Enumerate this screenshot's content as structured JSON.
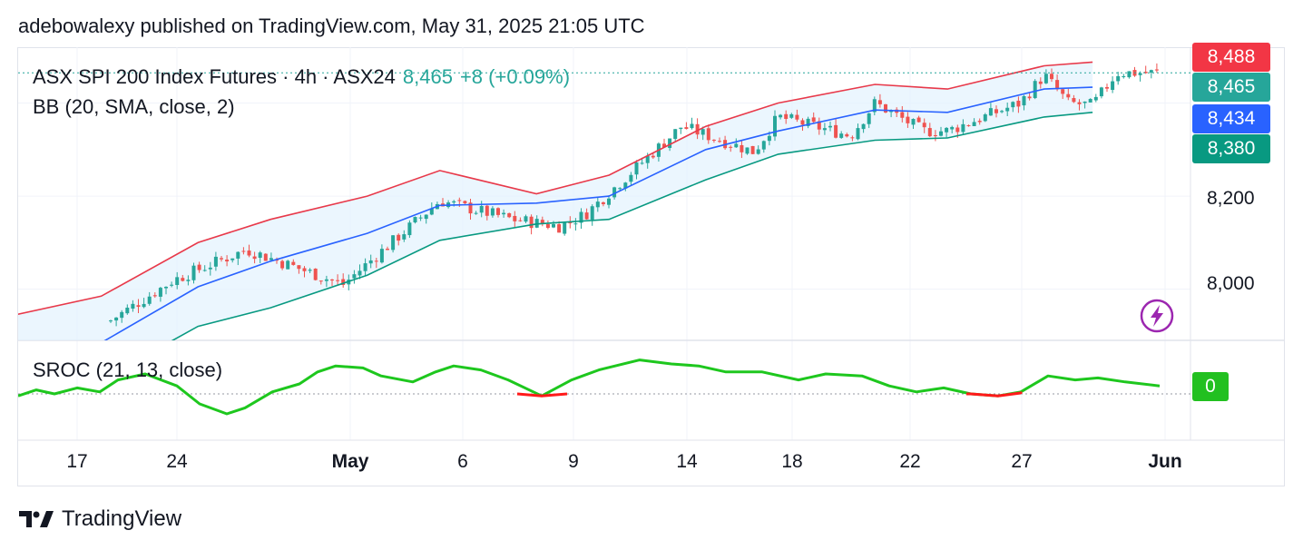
{
  "header": {
    "published": "adebowalexy published on TradingView.com, May 31, 2025 21:05 UTC"
  },
  "legend": {
    "symbol": "ASX SPI 200 Index Futures · 4h · ASX24",
    "last": "8,465",
    "change": "+8 (+0.09%)",
    "bb": "BB (20, SMA, close, 2)",
    "sroc": "SROC (21, 13, close)"
  },
  "price_badges": {
    "upper": "8,488",
    "last": "8,465",
    "middle": "8,434",
    "lower": "8,380",
    "sroc": "0"
  },
  "colors": {
    "up": "#26a69a",
    "down": "#ef5350",
    "bb_upper": "#e8394a",
    "bb_middle": "#2962ff",
    "bb_lower": "#089981",
    "bb_fill": "#e3f2fd",
    "sroc_pos": "#1ec71e",
    "sroc_neg": "#ff1a1a"
  },
  "footer": {
    "brand": "TradingView",
    "logo_icon": "tradingview-logo-icon",
    "action_icon": "lightning-icon"
  },
  "chart_data": {
    "type": "candlestick",
    "timeframe": "4h",
    "x_ticks": [
      "17",
      "24",
      "May",
      "6",
      "9",
      "14",
      "18",
      "22",
      "27",
      "Jun"
    ],
    "y_ticks": [
      "8,200",
      "8,000"
    ],
    "y_range": [
      7890,
      8520
    ],
    "last_price": 8465,
    "bollinger_bands": {
      "length": 20,
      "source": "close",
      "mult": 2,
      "dates": [
        "Apr 14",
        "Apr 18",
        "Apr 22",
        "Apr 25",
        "Apr 29",
        "May 2",
        "May 6",
        "May 9",
        "May 13",
        "May 16",
        "May 20",
        "May 23",
        "May 27",
        "May 29"
      ],
      "upper": [
        7940,
        7985,
        8100,
        8150,
        8200,
        8255,
        8205,
        8245,
        8350,
        8400,
        8440,
        8430,
        8480,
        8488
      ],
      "middle": [
        7865,
        7885,
        8005,
        8060,
        8120,
        8180,
        8185,
        8200,
        8300,
        8340,
        8385,
        8380,
        8430,
        8434
      ],
      "lower": [
        7790,
        7805,
        7920,
        7960,
        8030,
        8105,
        8140,
        8150,
        8235,
        8290,
        8320,
        8325,
        8370,
        8380
      ]
    },
    "price_path": {
      "dates": [
        "Apr 18",
        "Apr 21",
        "Apr 24",
        "Apr 28",
        "May 1",
        "May 2",
        "May 5",
        "May 7",
        "May 8",
        "May 12",
        "May 15",
        "May 16",
        "May 19",
        "May 20",
        "May 22",
        "May 23",
        "May 26",
        "May 27",
        "May 28",
        "May 29",
        "May 30"
      ],
      "close": [
        7920,
        8020,
        8085,
        8010,
        8145,
        8190,
        8150,
        8135,
        8160,
        8350,
        8295,
        8370,
        8330,
        8400,
        8340,
        8340,
        8400,
        8460,
        8400,
        8395,
        8465
      ]
    },
    "sroc": {
      "params": "21, 13, close",
      "zero_line": 0,
      "last": 0,
      "negative_periods": [
        "May 8",
        "May 24-26"
      ]
    }
  }
}
